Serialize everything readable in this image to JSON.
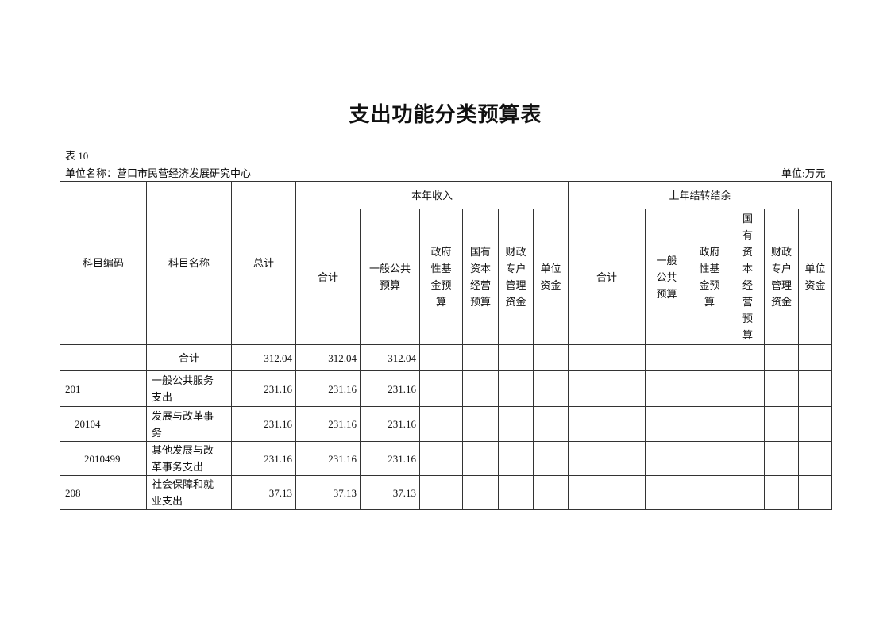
{
  "title": "支出功能分类预算表",
  "table_no": "表 10",
  "unit_name": "单位名称：营口市民营经济发展研究中心",
  "unit": "单位:万元",
  "headers": {
    "code": "科目编码",
    "name": "科目名称",
    "total": "总计",
    "group_current": "本年收入",
    "group_prior": "上年结转结余",
    "current": [
      "合计",
      "一般公共\n预算",
      "政府\n性基\n金预\n算",
      "国有\n资本\n经营\n预算",
      "财政\n专户\n管理\n资金",
      "单位\n资金"
    ],
    "prior": [
      "合计",
      "一般\n公共\n预算",
      "政府\n性基\n金预\n算",
      "国\n有\n资\n本\n经\n营\n预\n算",
      "财政\n专户\n管理\n资金",
      "单位\n资金"
    ]
  },
  "rows": [
    {
      "code": "",
      "name": "合计",
      "total": "312.04",
      "c_total": "312.04",
      "c_general": "312.04"
    },
    {
      "code": "201",
      "name": "一般公共服务\n支出",
      "total": "231.16",
      "c_total": "231.16",
      "c_general": "231.16"
    },
    {
      "code": "20104",
      "name": "发展与改革事\n务",
      "total": "231.16",
      "c_total": "231.16",
      "c_general": "231.16"
    },
    {
      "code": "2010499",
      "name": "其他发展与改\n革事务支出",
      "total": "231.16",
      "c_total": "231.16",
      "c_general": "231.16"
    },
    {
      "code": "208",
      "name": "社会保障和就\n业支出",
      "total": "37.13",
      "c_total": "37.13",
      "c_general": "37.13"
    }
  ]
}
